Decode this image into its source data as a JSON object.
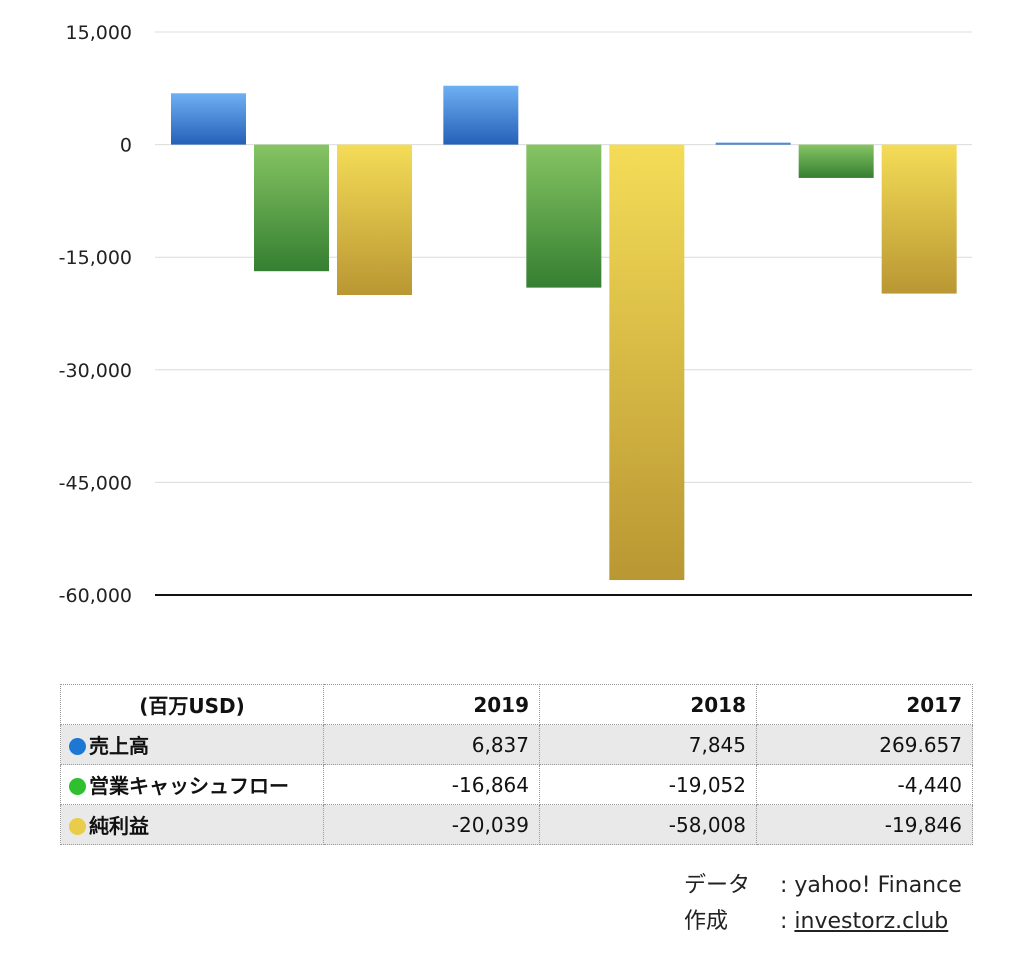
{
  "chart_data": {
    "type": "bar",
    "categories": [
      "2019",
      "2018",
      "2017"
    ],
    "series": [
      {
        "name": "売上高",
        "color": "#1f77d4",
        "values": [
          6837,
          7845,
          269.657
        ]
      },
      {
        "name": "営業キャッシュフロー",
        "color": "#2fbf2f",
        "values": [
          -16864,
          -19052,
          -4440
        ]
      },
      {
        "name": "純利益",
        "color": "#e8cc4a",
        "values": [
          -20039,
          -58008,
          -19846
        ]
      }
    ],
    "ylim": [
      -60000,
      15000
    ],
    "yticks": [
      15000,
      0,
      -15000,
      -30000,
      -45000,
      -60000
    ],
    "ytick_labels": [
      "15,000",
      "0",
      "-15,000",
      "-30,000",
      "-45,000",
      "-60,000"
    ],
    "grid": true,
    "title": "",
    "xlabel": "",
    "ylabel": ""
  },
  "table": {
    "unit_label": "(百万USD)",
    "years": [
      "2019",
      "2018",
      "2017"
    ],
    "rows": [
      {
        "label": "売上高",
        "color": "#1f77d4",
        "values": [
          "6,837",
          "7,845",
          "269.657"
        ]
      },
      {
        "label": "営業キャッシュフロー",
        "color": "#2fbf2f",
        "values": [
          "-16,864",
          "-19,052",
          "-4,440"
        ]
      },
      {
        "label": "純利益",
        "color": "#e8cc4a",
        "values": [
          "-20,039",
          "-58,008",
          "-19,846"
        ]
      }
    ]
  },
  "credits": {
    "data_key": "データ",
    "data_value": ": yahoo! Finance",
    "made_key": "作成",
    "made_prefix": ": ",
    "made_link": "investorz.club"
  }
}
